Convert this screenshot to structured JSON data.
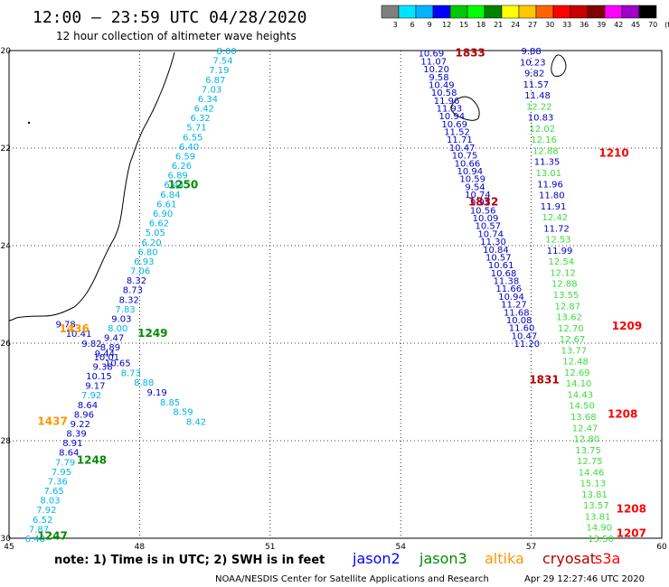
{
  "header": {
    "title": "12:00 – 23:59 UTC 04/28/2020",
    "subtitle": "12 hour collection of altimeter wave heights"
  },
  "colorbar": {
    "labels": [
      "3",
      "6",
      "9",
      "12",
      "15",
      "18",
      "21",
      "24",
      "27",
      "30",
      "33",
      "36",
      "39",
      "42",
      "45",
      "70",
      "(ft)"
    ],
    "colors": [
      "#7f7f7f",
      "#00e5ff",
      "#00b4ff",
      "#0000ff",
      "#00c800",
      "#00ff00",
      "#008200",
      "#ffff00",
      "#ffc800",
      "#ff6400",
      "#ff0000",
      "#c80000",
      "#7f0000",
      "#ff00ff",
      "#a000c8",
      "#000000"
    ]
  },
  "map": {
    "lon_range": [
      45,
      60
    ],
    "lat_range": [
      -30,
      -20
    ],
    "lon_ticks": [
      "45",
      "48",
      "51",
      "54",
      "57",
      "60"
    ],
    "lat_ticks": [
      "-20",
      "-22",
      "-24",
      "-26",
      "-28",
      "-30"
    ]
  },
  "tracks": [
    {
      "id": "t1",
      "sat": "jason2",
      "color": "#0000c8",
      "lon0": 46.3,
      "lat0": -25.6,
      "lon1": 49.3,
      "lat1": -27.6,
      "skew": "mixed",
      "values": [
        "9.78",
        "10.41",
        "9.82",
        "9.44",
        "10.65",
        "8.73",
        "8.88",
        "9.19",
        "8.85",
        "8.59",
        "8.42"
      ]
    },
    {
      "id": "t2",
      "sat": "jason2",
      "color": "#0000c8",
      "lon0": 54.7,
      "lat0": -20.05,
      "lon1": 56.9,
      "lat1": -26.0,
      "values": [
        "10.69",
        "11.07",
        "10.20",
        "9.58",
        "10.49",
        "10.58",
        "11.96",
        "11.93",
        "10.94",
        "10.69",
        "11.52",
        "11.71",
        "10.47",
        "10.75",
        "10.66",
        "10.94",
        "10.59",
        "9.54",
        "10.74",
        "9.92",
        "10.56",
        "10.09",
        "10.57",
        "10.74",
        "11.30",
        "10.84",
        "10.57",
        "10.61",
        "10.68",
        "11.38",
        "11.66",
        "10.94",
        "11.27",
        "11.68",
        "10.08",
        "11.60",
        "10.47",
        "11.20"
      ]
    },
    {
      "id": "t3",
      "sat": "jason3",
      "color": "#00c800",
      "lon0": 57.0,
      "lat0": -20.0,
      "lon1": 58.6,
      "lat1": -30.0,
      "values": [
        "9.88",
        "10.23",
        "9.82",
        "11.57",
        "11.48",
        "12.22",
        "10.83",
        "12.02",
        "12.16",
        "12.88",
        "11.35",
        "13.01",
        "11.96",
        "11.80",
        "11.91",
        "12.42",
        "11.72",
        "12.53",
        "11.99",
        "12.54",
        "12.12",
        "12.88",
        "13.55",
        "12.87",
        "13.62",
        "12.70",
        "12.67",
        "13.77",
        "12.48",
        "12.69",
        "14.10",
        "14.43",
        "14.50",
        "13.68",
        "12.47",
        "12.80",
        "13.75",
        "12.75",
        "14.46",
        "15.13",
        "13.81",
        "13.57",
        "13.81",
        "14.90",
        "13.50"
      ]
    },
    {
      "id": "t4",
      "sat": "altika",
      "color": "#00b4e6",
      "lon0": 50.0,
      "lat0": -20.0,
      "lon1": 45.6,
      "lat1": -30.0,
      "values": [
        "8.00",
        "7.54",
        "7.19",
        "6.87",
        "7.03",
        "6.34",
        "6.42",
        "6.32",
        "5.71",
        "6.55",
        "6.40",
        "6.59",
        "6.26",
        "6.89",
        "6.44",
        "6.84",
        "6.61",
        "6.90",
        "6.62",
        "5.05",
        "6.20",
        "6.80",
        "6.93",
        "7.06",
        "8.32",
        "8.73",
        "8.32",
        "7.83",
        "9.03",
        "8.00",
        "9.47",
        "8.89",
        "10.01",
        "9.38",
        "10.15",
        "9.17",
        "7.92",
        "8.64",
        "8.96",
        "9.22",
        "8.39",
        "8.91",
        "8.64",
        "7.79",
        "7.95",
        "7.36",
        "7.65",
        "8.03",
        "7.92",
        "6.52",
        "7.87",
        "6.48"
      ]
    }
  ],
  "times": [
    {
      "label": "1833",
      "sat": "cryosat",
      "lon": 55.6,
      "lat": -20.05
    },
    {
      "label": "1832",
      "sat": "cryosat",
      "lon": 55.9,
      "lat": -23.1
    },
    {
      "label": "1831",
      "sat": "cryosat",
      "lon": 57.3,
      "lat": -26.75
    },
    {
      "label": "1250",
      "sat": "jason3",
      "lon": 49.0,
      "lat": -22.75
    },
    {
      "label": "1249",
      "sat": "jason3",
      "lon": 48.3,
      "lat": -25.8
    },
    {
      "label": "1248",
      "sat": "jason3",
      "lon": 46.9,
      "lat": -28.4
    },
    {
      "label": "1247",
      "sat": "jason3",
      "lon": 46.0,
      "lat": -29.95
    },
    {
      "label": "1436",
      "sat": "altika",
      "lon": 46.5,
      "lat": -25.7
    },
    {
      "label": "1437",
      "sat": "altika",
      "lon": 46.0,
      "lat": -27.6
    },
    {
      "label": "1210",
      "sat": "s3a",
      "lon": 58.9,
      "lat": -22.1
    },
    {
      "label": "1209",
      "sat": "s3a",
      "lon": 59.2,
      "lat": -25.65
    },
    {
      "label": "1208",
      "sat": "s3a",
      "lon": 59.1,
      "lat": -27.45
    },
    {
      "label": "1208",
      "sat": "s3a",
      "lon": 59.3,
      "lat": -29.4
    },
    {
      "label": "1207",
      "sat": "s3a",
      "lon": 59.3,
      "lat": -29.9
    }
  ],
  "satColors": {
    "jason2": "#0000ff",
    "jason3": "#008c00",
    "altika": "#ff9600",
    "cryosat": "#b40000",
    "s3a": "#ff0000"
  },
  "footer": {
    "note": "note:  1) Time is in UTC;  2) SWH is in feet",
    "legend": [
      {
        "label": "jason2",
        "color": "#0000ff"
      },
      {
        "label": "jason3",
        "color": "#008c00"
      },
      {
        "label": "altika",
        "color": "#ff9600"
      },
      {
        "label": "cryosat",
        "color": "#b40000"
      },
      {
        "label": "s3a",
        "color": "#ff0000"
      }
    ],
    "credit": "NOAA/NESDIS Center for Satellite Applications and Research",
    "generated": "Apr 29 12:27:46 UTC 2020"
  }
}
